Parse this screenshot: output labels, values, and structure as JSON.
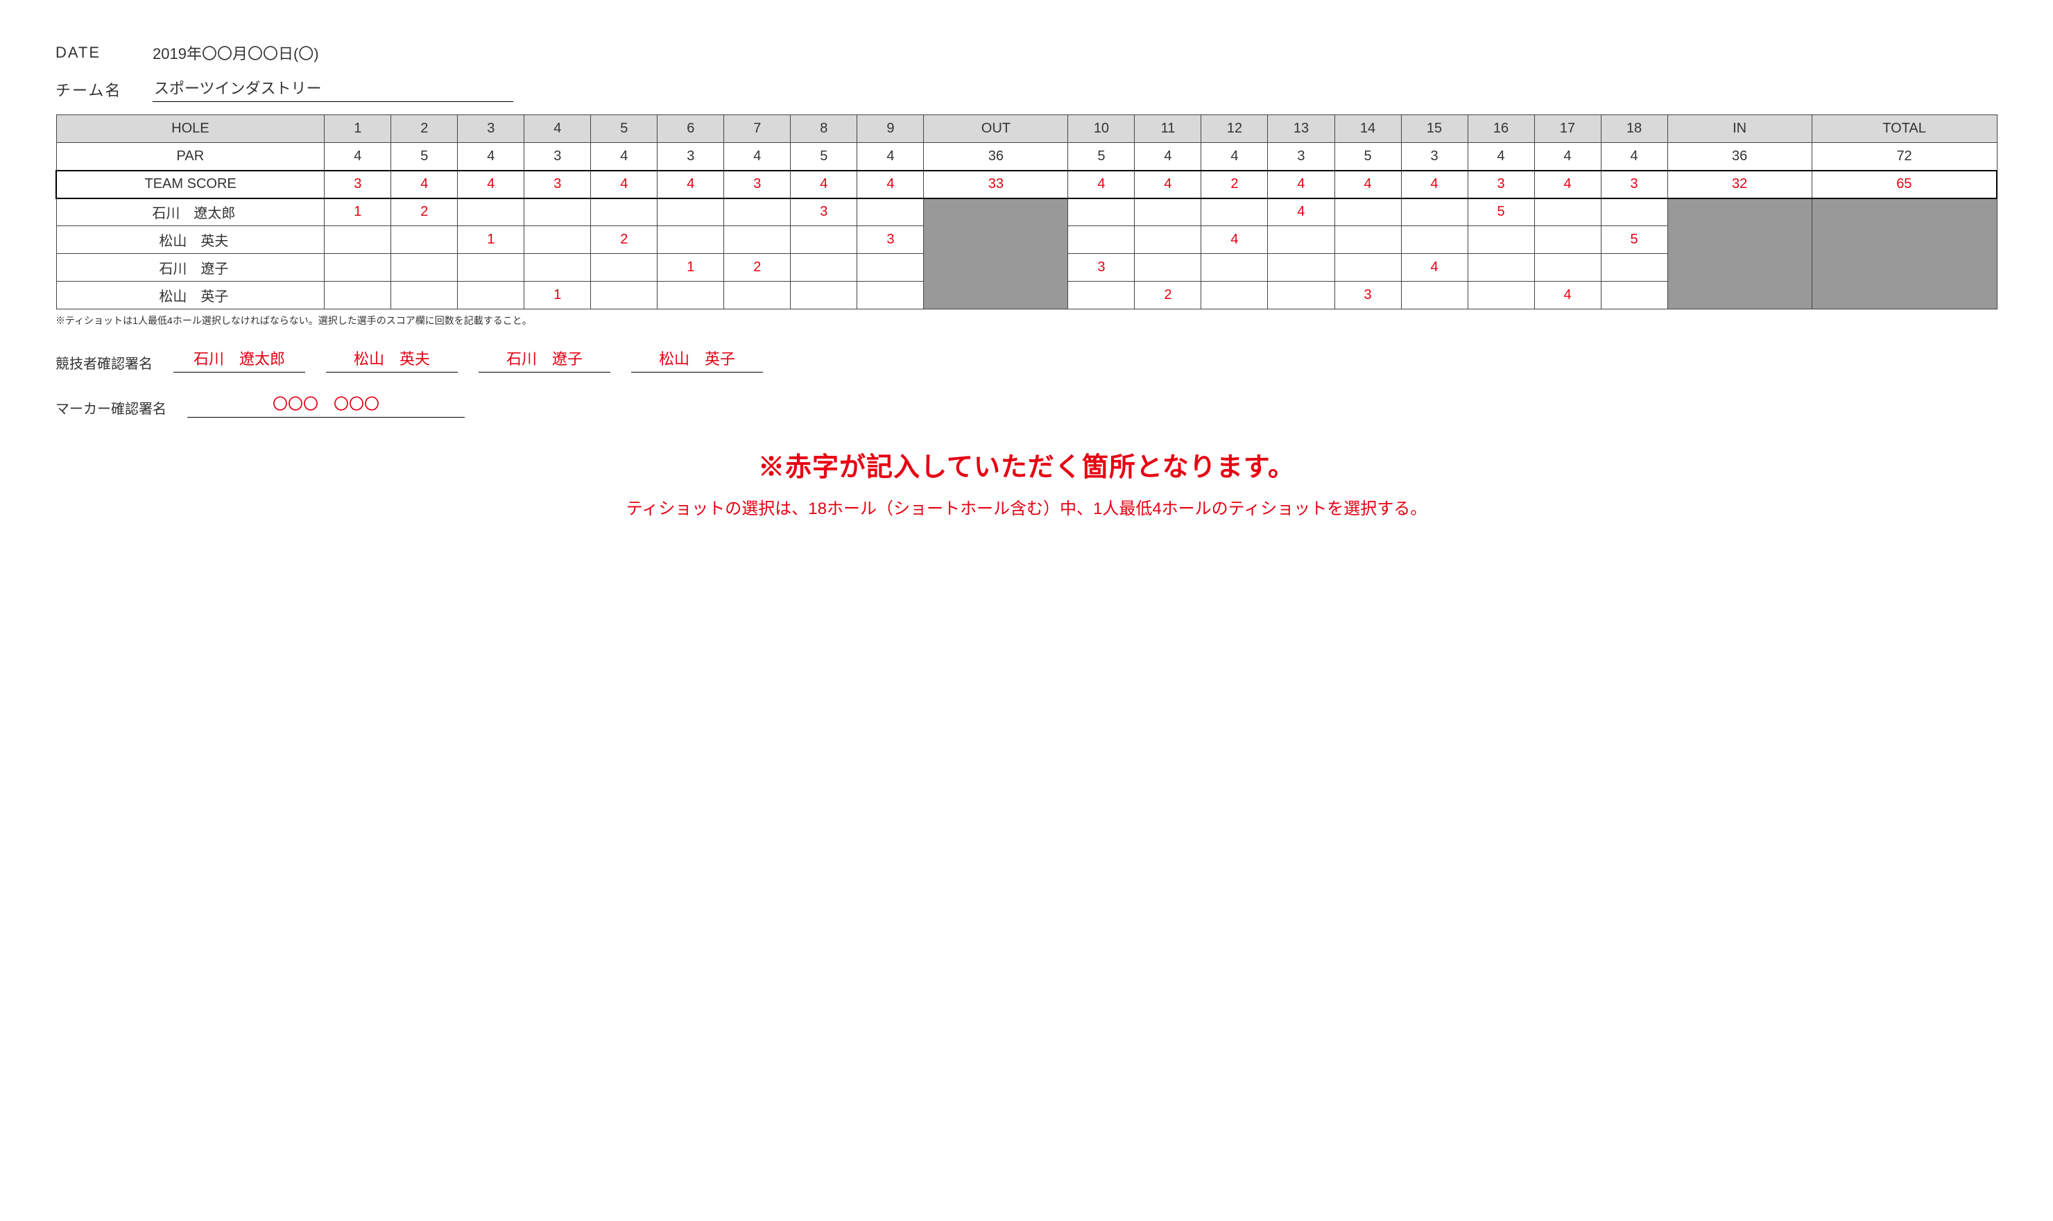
{
  "header": {
    "date_label": "DATE",
    "date_value": "2019年〇〇月〇〇日(〇)",
    "team_label": "チーム名",
    "team_value": "スポーツインダストリー"
  },
  "table": {
    "headers": {
      "hole": "HOLE",
      "par": "PAR",
      "team_score": "TEAM SCORE",
      "out": "OUT",
      "in": "IN",
      "total": "TOTAL"
    },
    "holes_front": [
      "1",
      "2",
      "3",
      "4",
      "5",
      "6",
      "7",
      "8",
      "9"
    ],
    "holes_back": [
      "10",
      "11",
      "12",
      "13",
      "14",
      "15",
      "16",
      "17",
      "18"
    ],
    "par_front": [
      "4",
      "5",
      "4",
      "3",
      "4",
      "3",
      "4",
      "5",
      "4"
    ],
    "par_out": "36",
    "par_back": [
      "5",
      "4",
      "4",
      "3",
      "5",
      "3",
      "4",
      "4",
      "4"
    ],
    "par_in": "36",
    "par_total": "72",
    "team_front": [
      "3",
      "4",
      "4",
      "3",
      "4",
      "4",
      "3",
      "4",
      "4"
    ],
    "team_out": "33",
    "team_back": [
      "4",
      "4",
      "2",
      "4",
      "4",
      "4",
      "3",
      "4",
      "3"
    ],
    "team_in": "32",
    "team_total": "65",
    "players": [
      {
        "name": "石川　遼太郎",
        "front": [
          "1",
          "2",
          "",
          "",
          "",
          "",
          "",
          "3",
          ""
        ],
        "back": [
          "",
          "",
          "",
          "4",
          "",
          "",
          "5",
          "",
          ""
        ]
      },
      {
        "name": "松山　英夫",
        "front": [
          "",
          "",
          "1",
          "",
          "2",
          "",
          "",
          "",
          "3"
        ],
        "back": [
          "",
          "",
          "4",
          "",
          "",
          "",
          "",
          "",
          "5"
        ]
      },
      {
        "name": "石川　遼子",
        "front": [
          "",
          "",
          "",
          "",
          "",
          "1",
          "2",
          "",
          ""
        ],
        "back": [
          "3",
          "",
          "",
          "",
          "",
          "4",
          "",
          "",
          ""
        ]
      },
      {
        "name": "松山　英子",
        "front": [
          "",
          "",
          "",
          "1",
          "",
          "",
          "",
          "",
          ""
        ],
        "back": [
          "",
          "2",
          "",
          "",
          "3",
          "",
          "",
          "4",
          ""
        ]
      }
    ]
  },
  "footnote": "※ティショットは1人最低4ホール選択しなければならない。選択した選手のスコア欄に回数を記載すること。",
  "signatures": {
    "competitor_label": "競技者確認署名",
    "competitors": [
      "石川　遼太郎",
      "松山　英夫",
      "石川　遼子",
      "松山　英子"
    ],
    "marker_label": "マーカー確認署名",
    "marker_value": "〇〇〇　〇〇〇"
  },
  "notes": {
    "big": "※赤字が記入していただく箇所となります。",
    "sub": "ティショットの選択は、18ホール（ショートホール含む）中、1人最低4ホールのティショットを選択する。"
  },
  "colors": {
    "red": "#e60012",
    "header_grey": "#d9d9d9",
    "cell_grey": "#999999",
    "border": "#444444",
    "background": "#ffffff"
  }
}
